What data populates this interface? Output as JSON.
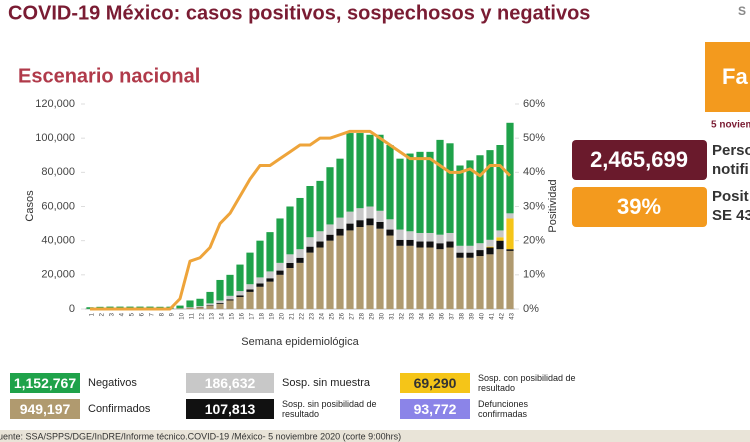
{
  "header": {
    "title": "COVID-19 México: casos positivos, sospechosos y negativos",
    "logo": "S"
  },
  "chart_data": {
    "type": "bar",
    "title": "Escenario nacional",
    "x_label": "Semana epidemiológica",
    "y_label": "Casos",
    "y2_label": "Positividad",
    "categories": [
      "1",
      "2",
      "3",
      "4",
      "5",
      "6",
      "7",
      "8",
      "9",
      "10",
      "11",
      "12",
      "13",
      "14",
      "15",
      "16",
      "17",
      "18",
      "19",
      "20",
      "21",
      "22",
      "23",
      "24",
      "25",
      "26",
      "27",
      "28",
      "29",
      "30",
      "31",
      "32",
      "33",
      "34",
      "35",
      "36",
      "37",
      "38",
      "39",
      "40",
      "41",
      "42",
      "43"
    ],
    "stacked": true,
    "series": [
      {
        "name": "Confirmados",
        "total": "949,197",
        "color": "#b09a6f",
        "values": [
          50,
          80,
          100,
          100,
          100,
          100,
          100,
          100,
          150,
          300,
          700,
          1000,
          2000,
          3000,
          5000,
          7000,
          10000,
          13000,
          16000,
          20000,
          24000,
          27000,
          33000,
          36000,
          40000,
          43000,
          46000,
          48000,
          49000,
          47000,
          43000,
          37000,
          37000,
          36000,
          36000,
          35000,
          36000,
          30000,
          30000,
          31000,
          32000,
          35000,
          34000
        ]
      },
      {
        "name": "Sosp. sin posibilidad de resultado",
        "total": "107,813",
        "color": "#111111",
        "values": [
          0,
          0,
          0,
          0,
          0,
          0,
          0,
          0,
          0,
          50,
          100,
          200,
          300,
          500,
          700,
          1000,
          1500,
          2000,
          2000,
          2500,
          3000,
          3000,
          3500,
          3500,
          3500,
          4000,
          4000,
          4000,
          4000,
          4000,
          3500,
          3500,
          3500,
          3500,
          3500,
          3500,
          3500,
          3000,
          3000,
          3500,
          4000,
          5000,
          1000
        ]
      },
      {
        "name": "Sosp. con posibilidad de resultado",
        "total": "69,290",
        "color": "#f5c518",
        "values": [
          0,
          0,
          0,
          0,
          0,
          0,
          0,
          0,
          0,
          0,
          0,
          0,
          0,
          0,
          0,
          0,
          0,
          0,
          0,
          0,
          0,
          0,
          0,
          0,
          0,
          0,
          0,
          0,
          0,
          0,
          0,
          0,
          0,
          0,
          0,
          0,
          0,
          0,
          0,
          0,
          500,
          2000,
          18000
        ]
      },
      {
        "name": "Sosp. sin muestra",
        "total": "186,632",
        "color": "#c8c8c8",
        "values": [
          0,
          0,
          0,
          0,
          0,
          0,
          0,
          0,
          0,
          100,
          300,
          500,
          1000,
          1500,
          2000,
          2500,
          3000,
          3500,
          4000,
          4500,
          5000,
          5000,
          5500,
          6000,
          6000,
          6500,
          7000,
          7000,
          7000,
          6500,
          6000,
          6000,
          5000,
          5000,
          5000,
          5000,
          5000,
          4000,
          4000,
          4000,
          4000,
          4000,
          3000
        ]
      },
      {
        "name": "Negativos",
        "total": "1,152,767",
        "color": "#1fa24a",
        "values": [
          1000,
          1200,
          1300,
          1300,
          1300,
          1300,
          1300,
          1200,
          1200,
          1550,
          3900,
          4300,
          6700,
          12000,
          12300,
          15500,
          18500,
          21500,
          23000,
          26000,
          28000,
          30000,
          30000,
          29500,
          33500,
          34500,
          46000,
          44000,
          42000,
          44500,
          43500,
          41500,
          45500,
          47500,
          47500,
          55500,
          52500,
          47000,
          50000,
          51500,
          52500,
          50000,
          53000
        ]
      },
      {
        "type": "line",
        "axis": "y2",
        "color": "#eea43a",
        "values": [
          0,
          0,
          0,
          0,
          0,
          0,
          0,
          0,
          0,
          3,
          14,
          15,
          18,
          25,
          28,
          33,
          38,
          42,
          42,
          44,
          46,
          48,
          48,
          50,
          50,
          51,
          52,
          52,
          52,
          50,
          48,
          46,
          44,
          44,
          44,
          42,
          40,
          40,
          41,
          39,
          42,
          42,
          39
        ]
      }
    ],
    "extra_legend": {
      "name": "Defunciones confirmadas",
      "total": "93,772",
      "color": "#8b84e8"
    },
    "ylim": [
      0,
      120000
    ],
    "yticks": [
      0,
      {
        "value": 20000,
        "label": "20,000"
      },
      {
        "value": 40000,
        "label": "40,000"
      },
      {
        "value": 60000,
        "label": "60,000"
      },
      {
        "value": 80000,
        "label": "80,000"
      },
      {
        "value": 100000,
        "label": "100,000"
      },
      {
        "value": 120000,
        "label": "120,000"
      }
    ],
    "y2lim": [
      0,
      60
    ],
    "y2ticks": [
      {
        "value": 0,
        "label": "0%"
      },
      {
        "value": 10,
        "label": "10%"
      },
      {
        "value": 20,
        "label": "20%"
      },
      {
        "value": 30,
        "label": "30%"
      },
      {
        "value": 40,
        "label": "40%"
      },
      {
        "value": 50,
        "label": "50%"
      },
      {
        "value": 60,
        "label": "60%"
      }
    ]
  },
  "side_panel": {
    "banner": "Fa",
    "date": "5 noviem",
    "people": "2,465,699",
    "people_label": [
      "Perso",
      "notifi"
    ],
    "positivity": "39%",
    "positivity_label": [
      "Posit",
      "SE 43"
    ]
  },
  "footer": "uente: SSA/SPPS/DGE/InDRE/Informe técnico.COVID-19 /México- 5 noviembre 2020 (corte 9:00hrs)"
}
